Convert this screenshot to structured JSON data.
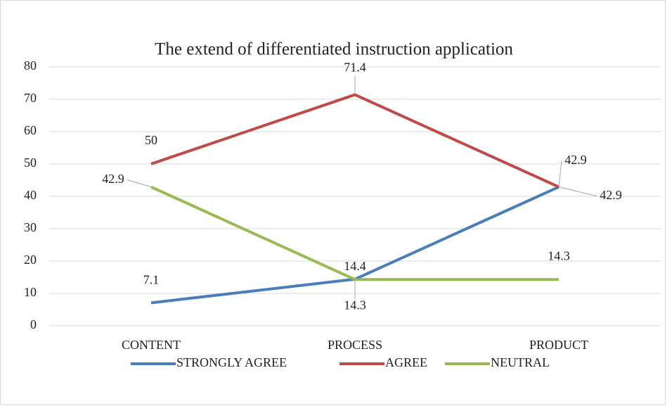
{
  "chart_data": {
    "type": "line",
    "title": "The extend of differentiated instruction application",
    "categories": [
      "CONTENT",
      "PROCESS",
      "PRODUCT"
    ],
    "series": [
      {
        "name": "STRONGLY AGREE",
        "color": "#4a7ebb",
        "values": [
          7.1,
          14.4,
          42.9
        ]
      },
      {
        "name": "AGREE",
        "color": "#be4b48",
        "values": [
          50,
          71.4,
          42.9
        ]
      },
      {
        "name": "NEUTRAL",
        "color": "#98b954",
        "values": [
          42.9,
          14.3,
          14.3
        ]
      }
    ],
    "ylim": [
      0,
      80
    ],
    "yticks": [
      0,
      10,
      20,
      30,
      40,
      50,
      60,
      70,
      80
    ],
    "grid": true,
    "legend": "bottom"
  }
}
